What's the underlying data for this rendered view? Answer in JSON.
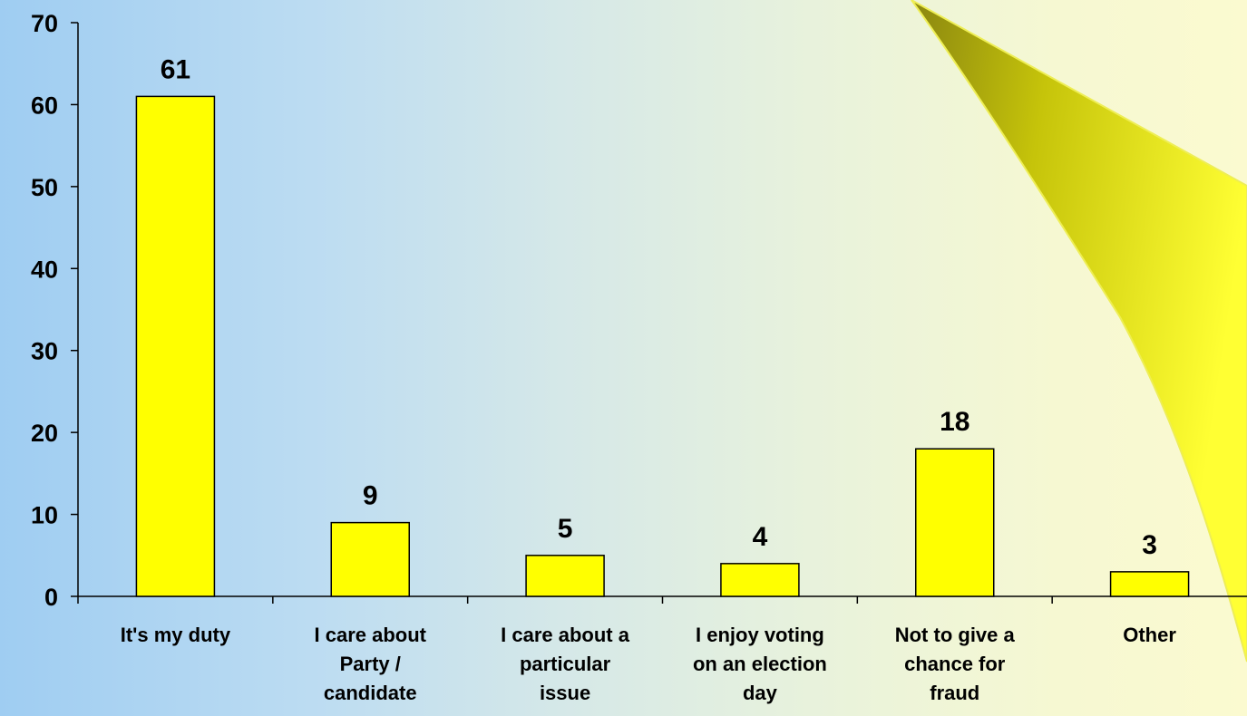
{
  "colors": {
    "bar_fill": "#ffff00",
    "bar_stroke": "#000000",
    "axis": "#000000",
    "decor_dark": "#7d7a10",
    "decor_light": "#ffff66"
  },
  "chart_data": {
    "type": "bar",
    "title": "",
    "xlabel": "",
    "ylabel": "",
    "ylim": [
      0,
      70
    ],
    "yticks": [
      0,
      10,
      20,
      30,
      40,
      50,
      60,
      70
    ],
    "categories": [
      [
        "It's my duty"
      ],
      [
        "I care about",
        "Party /",
        "candidate"
      ],
      [
        "I care about a",
        "particular",
        "issue"
      ],
      [
        "I enjoy voting",
        "on an election",
        "day"
      ],
      [
        "Not to give a",
        "chance for",
        "fraud"
      ],
      [
        "Other"
      ]
    ],
    "values": [
      61,
      9,
      5,
      4,
      18,
      3
    ],
    "data_labels": [
      "61",
      "9",
      "5",
      "4",
      "18",
      "3"
    ],
    "grid": false,
    "legend": "none"
  }
}
